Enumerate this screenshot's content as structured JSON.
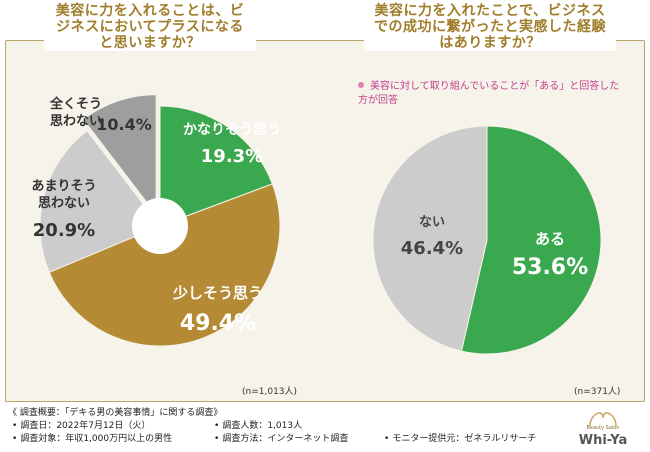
{
  "left_title": "美容に力を入れることは、ビジネスにおいてプラスになると思いますか？",
  "right_title": "美容に力を入れたことで、ビジネスでの成功に繋がったと実感した経験はありますか？",
  "right_note": "美容に対して取り組んでいることが「ある」と回答した方が回答",
  "chart_data": [
    {
      "type": "pie",
      "title": "美容に力を入れることは、ビジネスにおいてプラスになると思いますか？",
      "sample_size": "(n=1,013人)",
      "donut": true,
      "slices": [
        {
          "label_lines": [
            "かなりそう思う"
          ],
          "value": 19.3,
          "display": "19.3%",
          "color": "#3aa84e",
          "text_color": "#ffffff"
        },
        {
          "label_lines": [
            "少しそう思う"
          ],
          "value": 49.4,
          "display": "49.4%",
          "color": "#b48a34",
          "text_color": "#ffffff"
        },
        {
          "label_lines": [
            "あまりそう",
            "思わない"
          ],
          "value": 20.9,
          "display": "20.9%",
          "color": "#cccccc",
          "text_color": "#444444"
        },
        {
          "label_lines": [
            "全くそう",
            "思わない"
          ],
          "value": 10.4,
          "display": "10.4%",
          "color": "#9e9e9e",
          "text_color": "#444444"
        }
      ]
    },
    {
      "type": "pie",
      "title": "美容に力を入れたことで、ビジネスでの成功に繋がったと実感した経験はありますか？",
      "sample_size": "(n=371人)",
      "donut": false,
      "slices": [
        {
          "label_lines": [
            "ある"
          ],
          "value": 53.6,
          "display": "53.6%",
          "color": "#3aa84e",
          "text_color": "#ffffff"
        },
        {
          "label_lines": [
            "ない"
          ],
          "value": 46.4,
          "display": "46.4%",
          "color": "#cccccc",
          "text_color": "#444444"
        }
      ]
    }
  ],
  "footer": {
    "heading": "《 調査概要：「デキる男の美容事情」に関する調査》",
    "items": [
      "調査日：2022年7月12日（火）",
      "調査人数：1,013人",
      "調査対象：年収1,000万円以上の男性",
      "調査方法：インターネット調査",
      "モニター提供元：ゼネラルリサーチ"
    ]
  },
  "logo": {
    "tagline": "Beauty Salon",
    "name": "Whi-Ya"
  },
  "colors": {
    "accent_gold": "#a07d2a",
    "green": "#3aa84e",
    "note_pink": "#c0408c"
  }
}
